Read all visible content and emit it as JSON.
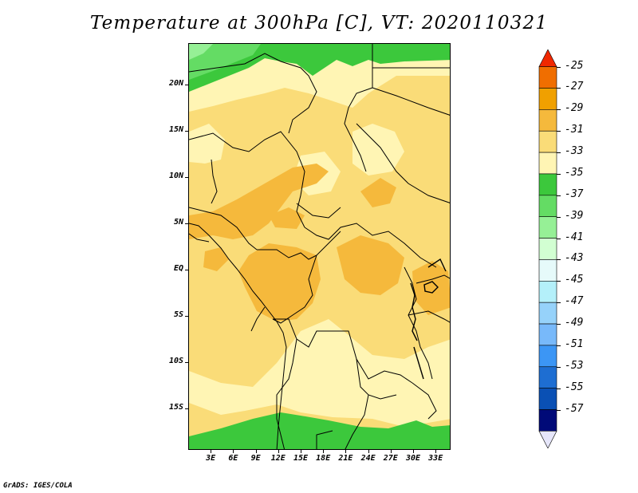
{
  "title": "Temperature at 300hPa [C], VT: 2020110321",
  "credit": "GrADS: IGES/COLA",
  "map": {
    "lat_labels": [
      "20N",
      "15N",
      "10N",
      "5N",
      "EQ",
      "5S",
      "10S",
      "15S"
    ],
    "lat_values": [
      20,
      15,
      10,
      5,
      0,
      -5,
      -10,
      -15
    ],
    "lon_labels": [
      "3E",
      "6E",
      "9E",
      "12E",
      "15E",
      "18E",
      "21E",
      "24E",
      "27E",
      "30E",
      "33E"
    ],
    "lon_values": [
      3,
      6,
      9,
      12,
      15,
      18,
      21,
      24,
      27,
      30,
      33
    ],
    "extent": {
      "lon_min": 0,
      "lon_max": 35,
      "lat_min": -19.5,
      "lat_max": 24.5
    }
  },
  "colorbar": {
    "labels": [
      "-25",
      "-27",
      "-29",
      "-31",
      "-33",
      "-35",
      "-37",
      "-39",
      "-41",
      "-43",
      "-45",
      "-47",
      "-49",
      "-51",
      "-53",
      "-55",
      "-57"
    ],
    "colors": [
      "#f02800",
      "#f06e00",
      "#f0a000",
      "#f5b93c",
      "#fadc78",
      "#fff5b4",
      "#3cc83c",
      "#64dc64",
      "#96f096",
      "#d2ffd2",
      "#e6fafa",
      "#b4f0fa",
      "#96d2fa",
      "#78b9fa",
      "#3c96f5",
      "#1e6ed2",
      "#0a50b4",
      "#000a78",
      "#e6e6fa"
    ]
  }
}
